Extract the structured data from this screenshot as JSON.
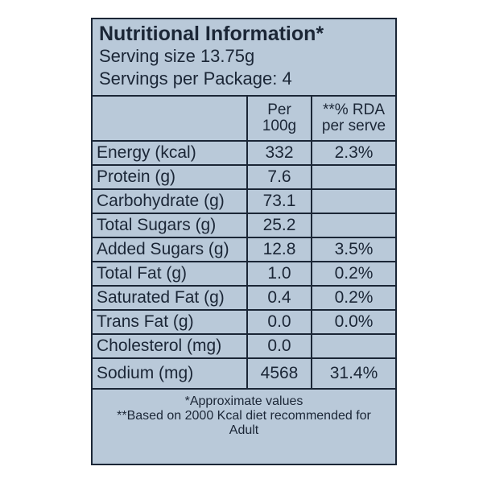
{
  "header": {
    "title": "Nutritional Information*",
    "serving_size": "Serving size 13.75g",
    "servings": "Servings per Package: 4"
  },
  "table": {
    "columns": [
      "Per 100g",
      "**% RDA per serve"
    ],
    "rows": [
      [
        "Energy (kcal)",
        "332",
        "2.3%"
      ],
      [
        "Protein (g)",
        "7.6"
      ],
      [
        "Carbohydrate (g)",
        "73.1"
      ],
      [
        "Total Sugars (g)",
        "25.2"
      ],
      [
        "Added Sugars (g)",
        "12.8",
        "3.5%"
      ],
      [
        "Total Fat (g)",
        "1.0",
        "0.2%"
      ],
      [
        "Saturated Fat (g)",
        "0.4",
        "0.2%"
      ],
      [
        "Trans Fat (g)",
        "0.0",
        "0.0%"
      ],
      [
        "Cholesterol (mg)",
        "0.0"
      ],
      [
        "Sodium (mg)",
        "4568",
        "31.4%"
      ]
    ]
  },
  "footer": {
    "note1": "*Approximate values",
    "note2": "**Based on 2000 Kcal diet recommended for Adult"
  }
}
